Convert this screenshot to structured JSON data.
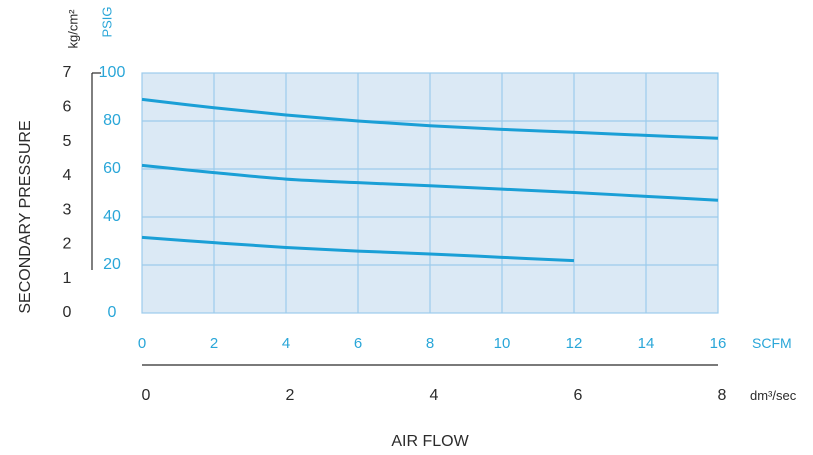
{
  "chart_data": {
    "type": "line",
    "ylabel": "SECONDARY PRESSURE",
    "xlabel": "AIR FLOW",
    "y_unit_left": "kg/cm²",
    "y_unit_right": "PSIG",
    "x_unit_primary": "SCFM",
    "x_unit_secondary": "dm³/sec",
    "xlim": [
      0,
      16
    ],
    "ylim": [
      0,
      100
    ],
    "x_ticks_scfm": [
      "0",
      "2",
      "4",
      "6",
      "8",
      "10",
      "12",
      "14",
      "16"
    ],
    "y_ticks_psig": [
      "0",
      "20",
      "40",
      "60",
      "80",
      "100"
    ],
    "y_ticks_kgcm2": [
      "0",
      "1",
      "2",
      "3",
      "4",
      "5",
      "6",
      "7"
    ],
    "x_ticks_dm3sec": [
      "0",
      "2",
      "4",
      "6",
      "8"
    ],
    "grid": true,
    "series": [
      {
        "x": [
          0,
          2,
          4,
          6,
          8,
          10,
          12,
          14,
          16
        ],
        "y": [
          89,
          85.5,
          82.5,
          80,
          78,
          76.5,
          75.3,
          74,
          72.8
        ]
      },
      {
        "x": [
          0,
          2,
          4,
          6,
          8,
          10,
          12,
          14,
          16
        ],
        "y": [
          61.5,
          58.5,
          55.8,
          54.3,
          53,
          51.6,
          50.2,
          48.6,
          47
        ]
      },
      {
        "x": [
          0,
          2,
          4,
          6,
          8,
          10,
          12
        ],
        "y": [
          31.5,
          29.3,
          27.3,
          25.8,
          24.6,
          23.2,
          21.8
        ]
      }
    ],
    "colors": {
      "line": "#1a9fd6",
      "plot_bg": "#dbe9f5",
      "grid": "#9ccbec",
      "accent_text": "#29a6d8",
      "dark_text": "#2b2b2b"
    }
  }
}
